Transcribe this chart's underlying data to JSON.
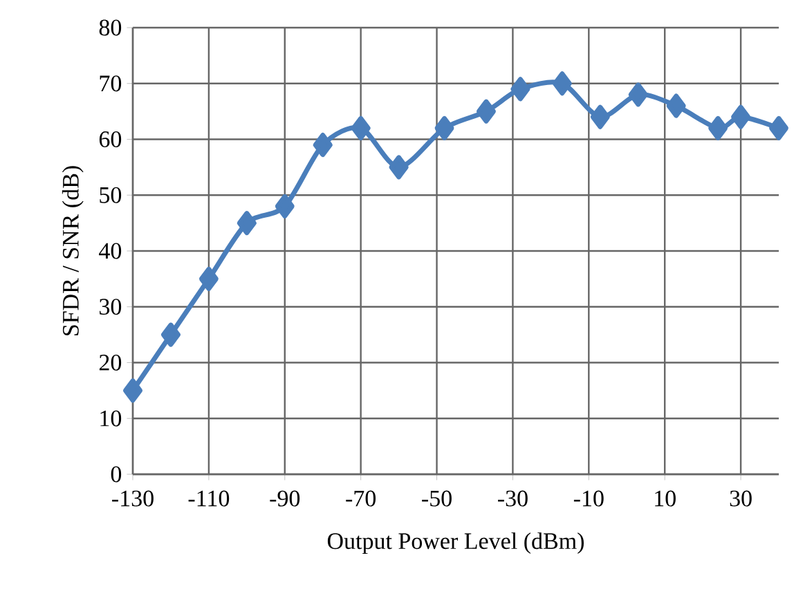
{
  "chart_data": {
    "type": "line",
    "xlabel": "Output Power Level (dBm)",
    "ylabel": "SFDR / SNR (dB)",
    "x": [
      -130,
      -120,
      -110,
      -100,
      -90,
      -80,
      -70,
      -60,
      -48,
      -37,
      -28,
      -17,
      -7,
      3,
      13,
      24,
      30,
      40
    ],
    "series": [
      {
        "color": "#4a7ebb",
        "values": [
          15,
          25,
          35,
          45,
          48,
          59,
          62,
          55,
          62,
          65,
          69,
          70,
          64,
          68,
          66,
          62,
          64,
          62
        ]
      }
    ],
    "xlim": [
      -130,
      40
    ],
    "xticks": [
      -130,
      -110,
      -90,
      -70,
      -50,
      -30,
      -10,
      10,
      30
    ],
    "ylim": [
      0,
      80
    ],
    "yticks": [
      0,
      10,
      20,
      30,
      40,
      50,
      60,
      70,
      80
    ],
    "grid": true,
    "marker": "diamond",
    "line_style": "solid"
  }
}
